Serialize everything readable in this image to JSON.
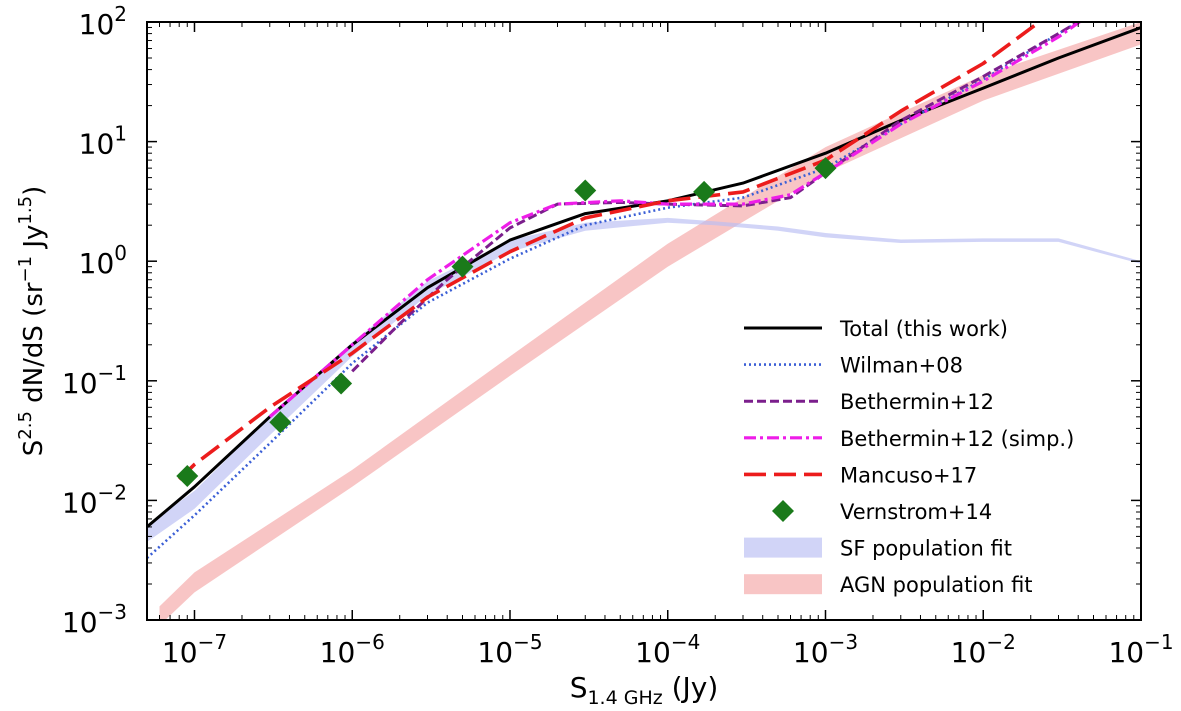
{
  "chart_data": {
    "type": "line",
    "xscale": "log",
    "yscale": "log",
    "xlim": [
      5e-08,
      0.1
    ],
    "ylim": [
      0.001,
      100
    ],
    "xlabel": {
      "base": "S",
      "sub": "1.4 GHz",
      "unit": "(Jy)"
    },
    "ylabel": {
      "lead": "S",
      "sup1": "2.5",
      "mid": " dN/dS (sr",
      "sup2": "−1",
      "mid2": " Jy",
      "sup3": "1.5",
      "tail": ")"
    },
    "x_ticks": [
      {
        "value": 1e-07,
        "base": "10",
        "exp": "−7"
      },
      {
        "value": 1e-06,
        "base": "10",
        "exp": "−6"
      },
      {
        "value": 1e-05,
        "base": "10",
        "exp": "−5"
      },
      {
        "value": 0.0001,
        "base": "10",
        "exp": "−4"
      },
      {
        "value": 0.001,
        "base": "10",
        "exp": "−3"
      },
      {
        "value": 0.01,
        "base": "10",
        "exp": "−2"
      },
      {
        "value": 0.1,
        "base": "10",
        "exp": "−1"
      }
    ],
    "y_ticks": [
      {
        "value": 0.001,
        "base": "10",
        "exp": "−3"
      },
      {
        "value": 0.01,
        "base": "10",
        "exp": "−2"
      },
      {
        "value": 0.1,
        "base": "10",
        "exp": "−1"
      },
      {
        "value": 1,
        "base": "10",
        "exp": "0"
      },
      {
        "value": 10,
        "base": "10",
        "exp": "1"
      },
      {
        "value": 100,
        "base": "10",
        "exp": "2"
      }
    ],
    "legend_position": "lower-right",
    "bands": [
      {
        "name": "AGN population fit",
        "color": "#f4a6a6",
        "points": [
          [
            6e-08,
            0.0009,
            0.0013
          ],
          [
            1e-07,
            0.0017,
            0.0025
          ],
          [
            1e-06,
            0.013,
            0.018
          ],
          [
            1e-05,
            0.11,
            0.16
          ],
          [
            0.0001,
            0.9,
            1.4
          ],
          [
            0.001,
            5.5,
            9
          ],
          [
            0.01,
            22,
            36
          ],
          [
            0.1,
            65,
            100
          ]
        ]
      },
      {
        "name": "SF population fit",
        "color": "#b8bdf2",
        "points": [
          [
            5e-08,
            0.0045,
            0.0062
          ],
          [
            1e-07,
            0.0085,
            0.012
          ],
          [
            3e-07,
            0.035,
            0.05
          ],
          [
            1e-06,
            0.16,
            0.21
          ],
          [
            3e-06,
            0.52,
            0.68
          ],
          [
            1e-05,
            1.2,
            1.5
          ],
          [
            3e-05,
            1.8,
            2.1
          ],
          [
            0.0001,
            2.1,
            2.3
          ],
          [
            0.0002,
            2.0,
            2.15
          ],
          [
            0.0005,
            1.8,
            1.95
          ],
          [
            0.001,
            1.58,
            1.72
          ],
          [
            0.003,
            1.42,
            1.52
          ],
          [
            0.01,
            1.45,
            1.55
          ],
          [
            0.03,
            1.45,
            1.55
          ],
          [
            0.1,
            0.95,
            1.0
          ]
        ]
      }
    ],
    "series": [
      {
        "name": "Total (this work)",
        "color": "#000000",
        "style": "solid",
        "points": [
          [
            5e-08,
            0.006
          ],
          [
            1e-07,
            0.013
          ],
          [
            3e-07,
            0.05
          ],
          [
            1e-06,
            0.2
          ],
          [
            3e-06,
            0.6
          ],
          [
            1e-05,
            1.5
          ],
          [
            3e-05,
            2.5
          ],
          [
            0.0001,
            3.2
          ],
          [
            0.0003,
            4.5
          ],
          [
            0.001,
            8
          ],
          [
            0.003,
            15
          ],
          [
            0.01,
            28
          ],
          [
            0.03,
            50
          ],
          [
            0.1,
            90
          ]
        ]
      },
      {
        "name": "Wilman+08",
        "color": "#3b5fd6",
        "style": "dotted",
        "points": [
          [
            5e-08,
            0.0033
          ],
          [
            1e-07,
            0.0075
          ],
          [
            3e-07,
            0.03
          ],
          [
            1e-06,
            0.14
          ],
          [
            3e-06,
            0.45
          ],
          [
            1e-05,
            1.05
          ],
          [
            3e-05,
            2.0
          ],
          [
            0.0001,
            2.8
          ],
          [
            0.0003,
            3.4
          ],
          [
            0.001,
            6
          ],
          [
            0.003,
            14
          ],
          [
            0.01,
            33
          ],
          [
            0.03,
            80
          ],
          [
            0.045,
            110
          ]
        ]
      },
      {
        "name": "Bethermin+12",
        "color": "#7b1f8c",
        "style": "dashed",
        "points": [
          [
            1e-06,
            0.12
          ],
          [
            2e-06,
            0.3
          ],
          [
            4e-06,
            0.7
          ],
          [
            1e-05,
            1.9
          ],
          [
            2e-05,
            3.0
          ],
          [
            5e-05,
            3.1
          ],
          [
            0.0001,
            3.0
          ],
          [
            0.0003,
            2.9
          ],
          [
            0.0006,
            3.4
          ],
          [
            0.001,
            5.5
          ],
          [
            0.003,
            15
          ],
          [
            0.01,
            35
          ],
          [
            0.03,
            80
          ],
          [
            0.045,
            110
          ]
        ]
      },
      {
        "name": "Bethermin+12 (simp.)",
        "color": "#ee1de8",
        "style": "dashdot",
        "points": [
          [
            3e-07,
            0.05
          ],
          [
            1e-06,
            0.2
          ],
          [
            3e-06,
            0.7
          ],
          [
            1e-05,
            2.1
          ],
          [
            2e-05,
            3.0
          ],
          [
            5e-05,
            3.2
          ],
          [
            0.0001,
            3.0
          ],
          [
            0.0003,
            3.0
          ],
          [
            0.0006,
            3.6
          ],
          [
            0.001,
            5.5
          ],
          [
            0.003,
            14
          ],
          [
            0.01,
            32
          ],
          [
            0.03,
            75
          ],
          [
            0.045,
            110
          ]
        ]
      },
      {
        "name": "Mancuso+17",
        "color": "#ec1c1c",
        "style": "longdash",
        "points": [
          [
            8e-08,
            0.015
          ],
          [
            1e-07,
            0.02
          ],
          [
            3e-07,
            0.06
          ],
          [
            1e-06,
            0.17
          ],
          [
            3e-06,
            0.5
          ],
          [
            1e-05,
            1.2
          ],
          [
            3e-05,
            2.3
          ],
          [
            0.0001,
            3.2
          ],
          [
            0.0003,
            3.8
          ],
          [
            0.001,
            7
          ],
          [
            0.003,
            18
          ],
          [
            0.01,
            45
          ],
          [
            0.025,
            110
          ]
        ]
      }
    ],
    "points_series": [
      {
        "name": "Vernstrom+14",
        "color": "#1a7a1a",
        "marker": "diamond",
        "points": [
          [
            9e-08,
            0.016
          ],
          [
            3.5e-07,
            0.045
          ],
          [
            8.5e-07,
            0.095
          ],
          [
            5e-06,
            0.9
          ],
          [
            3e-05,
            3.9
          ],
          [
            0.00017,
            3.8
          ],
          [
            0.001,
            6.0
          ]
        ]
      }
    ],
    "legend": [
      {
        "label": "Total (this work)",
        "kind": "line",
        "ref": "Total (this work)"
      },
      {
        "label": "Wilman+08",
        "kind": "line",
        "ref": "Wilman+08"
      },
      {
        "label": "Bethermin+12",
        "kind": "line",
        "ref": "Bethermin+12"
      },
      {
        "label": "Bethermin+12 (simp.)",
        "kind": "line",
        "ref": "Bethermin+12 (simp.)"
      },
      {
        "label": "Mancuso+17",
        "kind": "line",
        "ref": "Mancuso+17"
      },
      {
        "label": "Vernstrom+14",
        "kind": "marker",
        "ref": "Vernstrom+14"
      },
      {
        "label": "SF population fit",
        "kind": "band",
        "ref": "SF population fit"
      },
      {
        "label": "AGN population fit",
        "kind": "band",
        "ref": "AGN population fit"
      }
    ]
  }
}
